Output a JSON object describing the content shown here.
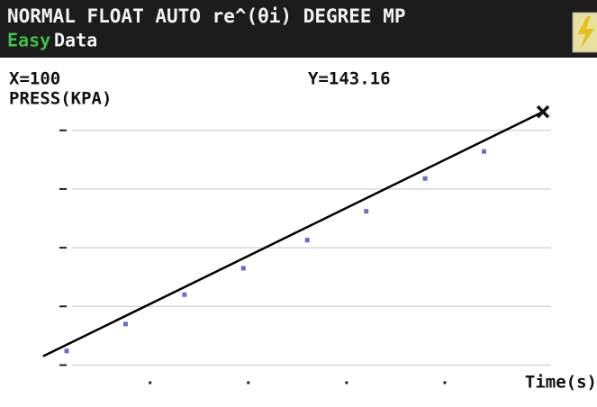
{
  "status_bar": {
    "mode": "NORMAL FLOAT AUTO re^(θi) DEGREE MP",
    "app_prefix": "Easy",
    "app": "Data"
  },
  "chart_data": {
    "type": "scatter",
    "trace_x": "X=100",
    "trace_y": "Y=143.16",
    "y_label": "PRESS(KPA)",
    "x_label": "Time(s)",
    "x": [
      3,
      15,
      27,
      39,
      52,
      64,
      76,
      88
    ],
    "series": [
      {
        "color": "#6b6bd6",
        "values": [
          102.4,
          107.0,
          112.0,
          116.5,
          121.3,
          126.2,
          131.8,
          136.4
        ]
      }
    ],
    "fit_line": {
      "color": "#000000",
      "x": [
        -1.8,
        100
      ],
      "values": [
        101.5,
        143.16
      ]
    },
    "trace_point": {
      "x": 100,
      "y": 143.16
    },
    "xlim": [
      -8,
      111
    ],
    "ylim": [
      97,
      143.8
    ],
    "xticks": [
      20,
      40,
      60,
      80
    ],
    "yticks": [
      100,
      110,
      120,
      130,
      140
    ],
    "grid": true
  }
}
